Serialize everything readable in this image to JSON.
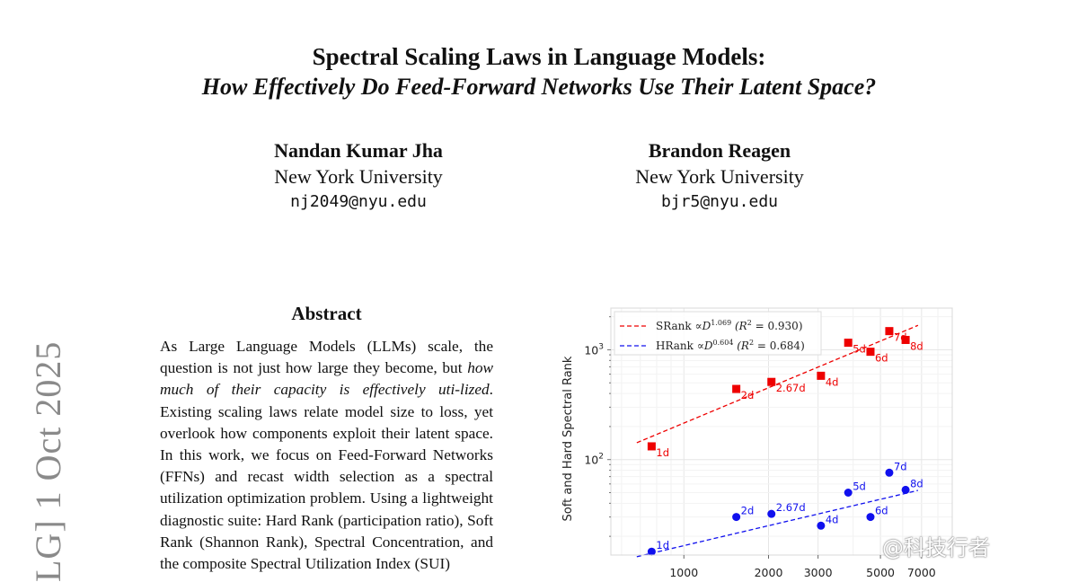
{
  "paper": {
    "title_line1": "Spectral Scaling Laws in Language Models:",
    "title_line2": "How Effectively Do Feed-Forward Networks Use Their Latent Space?",
    "authors": [
      {
        "name": "Nandan Kumar Jha",
        "affiliation": "New York University",
        "email": "nj2049@nyu.edu"
      },
      {
        "name": "Brandon Reagen",
        "affiliation": "New York University",
        "email": "bjr5@nyu.edu"
      }
    ],
    "arxiv_stamp": "LG]  1 Oct 2025",
    "abstract_heading": "Abstract",
    "abstract_parts": {
      "p1": "As Large Language Models (LLMs) scale, the question is not just how large they become, but ",
      "p2_italic": "how much of their capacity is effectively uti-lized",
      "p3": ". Existing scaling laws relate model size to loss, yet overlook how components exploit their latent space. In this work, we focus on Feed-Forward Networks (FFNs) and recast width selection as a spectral utilization optimization problem. Using a lightweight diagnostic suite: Hard Rank (participation ratio), Soft Rank (Shannon Rank), Spectral Concentration, and the composite Spectral Utilization Index (SUI)"
    }
  },
  "watermark": "@科技行者",
  "chart_data": {
    "type": "scatter",
    "xscale": "log",
    "yscale": "log",
    "xlim": [
      550,
      9000
    ],
    "ylim": [
      13.5,
      2400
    ],
    "ylabel": "Soft and Hard Spectral Rank",
    "xticks": [
      1000,
      2000,
      3000,
      5000,
      7000
    ],
    "xtick_labels": [
      "1000",
      "2000",
      "3000",
      "5000",
      "7000"
    ],
    "yticks": [
      100,
      1000
    ],
    "grid": true,
    "legend_position": "top-left",
    "legend": [
      {
        "label_prefix": "SRank",
        "label_math": "∝D",
        "exponent": "1.069",
        "r2_text": "(R",
        "r2_value": "= 0.930)"
      },
      {
        "label_prefix": "HRank",
        "label_math": "∝D",
        "exponent": "0.604",
        "r2_text": "(R",
        "r2_value": "= 0.684)"
      }
    ],
    "series": [
      {
        "name": "SRank",
        "color": "#ee0000",
        "marker": "square",
        "fit": {
          "coef": 0.1335,
          "exp": 1.069
        },
        "points": [
          {
            "x": 768,
            "y": 132,
            "label": "1d"
          },
          {
            "x": 1536,
            "y": 440,
            "label": "2d"
          },
          {
            "x": 2048,
            "y": 510,
            "label": "2.67d"
          },
          {
            "x": 3072,
            "y": 580,
            "label": "4d"
          },
          {
            "x": 3840,
            "y": 1160,
            "label": "5d"
          },
          {
            "x": 4608,
            "y": 960,
            "label": "6d"
          },
          {
            "x": 5376,
            "y": 1480,
            "label": "7d"
          },
          {
            "x": 6144,
            "y": 1230,
            "label": "8d"
          }
        ]
      },
      {
        "name": "HRank",
        "color": "#1010ee",
        "marker": "circle",
        "fit": {
          "coef": 0.2536,
          "exp": 0.604
        },
        "points": [
          {
            "x": 768,
            "y": 14.5,
            "label": "1d"
          },
          {
            "x": 1536,
            "y": 30,
            "label": "2d"
          },
          {
            "x": 2048,
            "y": 32,
            "label": "2.67d"
          },
          {
            "x": 3072,
            "y": 25,
            "label": "4d"
          },
          {
            "x": 3840,
            "y": 50,
            "label": "5d"
          },
          {
            "x": 4608,
            "y": 30,
            "label": "6d"
          },
          {
            "x": 5376,
            "y": 76,
            "label": "7d"
          },
          {
            "x": 6144,
            "y": 53,
            "label": "8d"
          }
        ]
      }
    ]
  }
}
